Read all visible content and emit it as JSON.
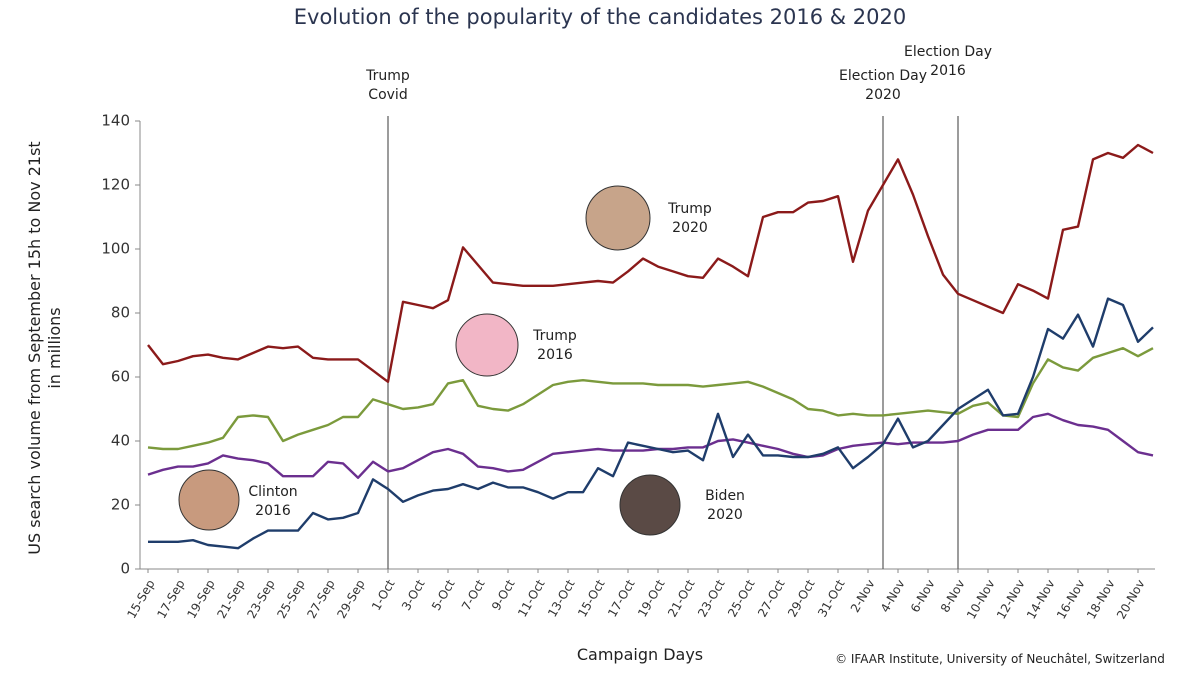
{
  "chart_data": {
    "type": "line",
    "title": "Evolution of the popularity of the candidates 2016 & 2020",
    "y_label": "US search volume from September 15h to Nov  21st\nin millions",
    "x_label": "Campaign Days",
    "credit": "© IFAAR Institute, University of Neuchâtel, Switzerland",
    "categories": [
      "15-Sep",
      null,
      "17-Sep",
      null,
      "19-Sep",
      null,
      "21-Sep",
      null,
      "23-Sep",
      null,
      "25-Sep",
      null,
      "27-Sep",
      null,
      "29-Sep",
      null,
      "1-Oct",
      null,
      "3-Oct",
      null,
      "5-Oct",
      null,
      "7-Oct",
      null,
      "9-Oct",
      null,
      "11-Oct",
      null,
      "13-Oct",
      null,
      "15-Oct",
      null,
      "17-Oct",
      null,
      "19-Oct",
      null,
      "21-Oct",
      null,
      "23-Oct",
      null,
      "25-Oct",
      null,
      "27-Oct",
      null,
      "29-Oct",
      null,
      "31-Oct",
      null,
      "2-Nov",
      null,
      "4-Nov",
      null,
      "6-Nov",
      null,
      "8-Nov",
      null,
      "10-Nov",
      null,
      "12-Nov",
      null,
      "14-Nov",
      null,
      "16-Nov",
      null,
      "18-Nov",
      null,
      "20-Nov",
      null
    ],
    "ylim": [
      0,
      140
    ],
    "yticks": [
      0,
      20,
      40,
      60,
      80,
      100,
      120,
      140
    ],
    "series": [
      {
        "name": "Trump\n2020",
        "color": "#8b1a1a",
        "values": [
          70,
          64,
          65,
          66.5,
          67,
          66,
          65.5,
          67.5,
          69.5,
          69,
          69.5,
          66,
          65.5,
          65.5,
          65.5,
          62,
          58.5,
          83.5,
          82.5,
          81.5,
          84,
          100.5,
          95,
          89.5,
          89,
          88.5,
          88.5,
          88.5,
          89,
          89.5,
          90,
          89.5,
          93,
          97,
          94.5,
          93,
          91.5,
          91,
          97,
          94.5,
          91.5,
          110,
          111.5,
          111.5,
          114.5,
          115,
          116.5,
          96,
          112,
          120,
          128,
          117,
          104,
          92,
          86,
          84,
          82,
          80,
          89,
          87,
          84.5,
          106,
          107,
          128,
          130,
          128.5,
          132.5,
          130
        ]
      },
      {
        "name": "Trump\n2016",
        "color": "#7b9a3c",
        "values": [
          38,
          37.5,
          37.5,
          38.5,
          39.5,
          41,
          47.5,
          48,
          47.5,
          40,
          42,
          43.5,
          45,
          47.5,
          47.5,
          53,
          51.5,
          50,
          50.5,
          51.5,
          58,
          59,
          51,
          50,
          49.5,
          51.5,
          54.5,
          57.5,
          58.5,
          59,
          58.5,
          58,
          58,
          58,
          57.5,
          57.5,
          57.5,
          57,
          57.5,
          58,
          58.5,
          57,
          55,
          53,
          50,
          49.5,
          48,
          48.5,
          48,
          48,
          48.5,
          49,
          49.5,
          49,
          48.5,
          51,
          52,
          48,
          47.5,
          58,
          65.5,
          63,
          62,
          66,
          67.5,
          69,
          66.5,
          69
        ]
      },
      {
        "name": "Clinton\n2016",
        "color": "#6b2f8f",
        "values": [
          29.5,
          31,
          32,
          32,
          33,
          35.5,
          34.5,
          34,
          33,
          29,
          29,
          29,
          33.5,
          33,
          28.5,
          33.5,
          30.5,
          31.5,
          34,
          36.5,
          37.5,
          36,
          32,
          31.5,
          30.5,
          31,
          33.5,
          36,
          36.5,
          37,
          37.5,
          37,
          37,
          37,
          37.5,
          37.5,
          38,
          38,
          40,
          40.5,
          39.5,
          38.5,
          37.5,
          36,
          35,
          35.5,
          37.5,
          38.5,
          39,
          39.5,
          39,
          39.5,
          39.5,
          39.5,
          40,
          42,
          43.5,
          43.5,
          43.5,
          47.5,
          48.5,
          46.5,
          45,
          44.5,
          43.5,
          40,
          36.5,
          35.5
        ]
      },
      {
        "name": "Biden\n2020",
        "color": "#1f3d6b",
        "values": [
          8.5,
          8.5,
          8.5,
          9,
          7.5,
          7,
          6.5,
          9.5,
          12,
          12,
          12,
          17.5,
          15.5,
          16,
          17.5,
          28,
          25,
          21,
          23,
          24.5,
          25,
          26.5,
          25,
          27,
          25.5,
          25.5,
          24,
          22,
          24,
          24,
          31.5,
          29,
          39.5,
          38.5,
          37.5,
          36.5,
          37,
          34,
          48.5,
          35,
          42,
          35.5,
          35.5,
          35,
          35,
          36,
          38,
          31.5,
          35,
          39,
          47,
          38,
          40,
          45,
          50,
          53,
          56,
          48,
          48.5,
          60,
          75,
          72,
          79.5,
          69.5,
          84.5,
          82.5,
          71,
          75.5
        ]
      }
    ],
    "vlines": [
      {
        "index": 16,
        "label": "Trump\nCovid"
      },
      {
        "index": 49,
        "label": "Election Day\n2020"
      },
      {
        "index": 54,
        "label": "Election Day\n2016"
      }
    ]
  }
}
